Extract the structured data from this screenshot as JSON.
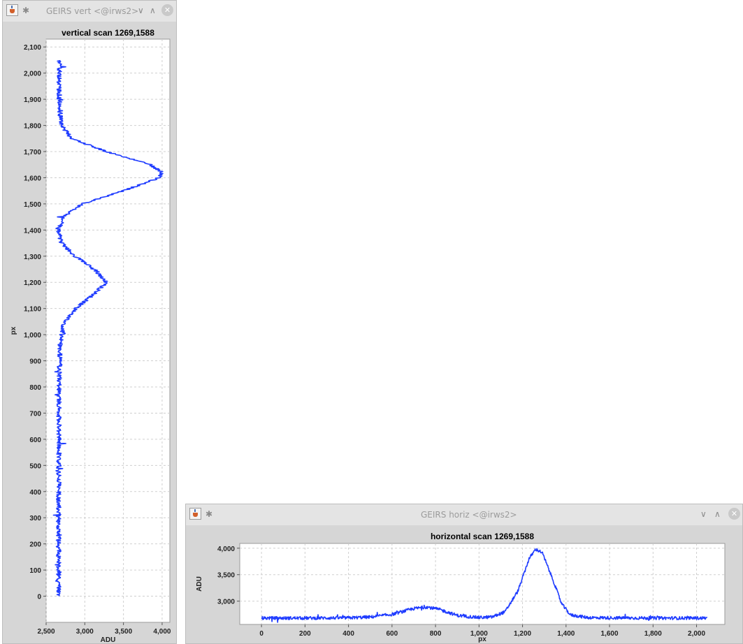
{
  "vert_window": {
    "title": "GEIRS vert <@irws2>",
    "icons": [
      "java-app-icon",
      "pin-icon",
      "chevron-down-icon",
      "chevron-up-icon",
      "close-icon"
    ],
    "chart_data": {
      "type": "line",
      "title": "vertical scan 1269,1588",
      "xlabel": "ADU",
      "ylabel": "px",
      "xlim": [
        2500,
        4100
      ],
      "ylim": [
        -100,
        2130
      ],
      "x_ticks": [
        "2,500",
        "3,000",
        "3,500",
        "4,000"
      ],
      "y_ticks": [
        "0",
        "100",
        "200",
        "300",
        "400",
        "500",
        "600",
        "700",
        "800",
        "900",
        "1,000",
        "1,100",
        "1,200",
        "1,300",
        "1,400",
        "1,500",
        "1,600",
        "1,700",
        "1,800",
        "1,900",
        "2,000",
        "2,100"
      ],
      "grid": true,
      "series": [
        {
          "color": "#1f3cff",
          "points": [
            [
              0,
              2660
            ],
            [
              100,
              2665
            ],
            [
              200,
              2660
            ],
            [
              300,
              2660
            ],
            [
              400,
              2665
            ],
            [
              500,
              2665
            ],
            [
              600,
              2665
            ],
            [
              700,
              2670
            ],
            [
              800,
              2670
            ],
            [
              900,
              2675
            ],
            [
              950,
              2680
            ],
            [
              1000,
              2700
            ],
            [
              1050,
              2740
            ],
            [
              1100,
              2880
            ],
            [
              1150,
              3100
            ],
            [
              1200,
              3280
            ],
            [
              1250,
              3130
            ],
            [
              1300,
              2870
            ],
            [
              1350,
              2700
            ],
            [
              1400,
              2660
            ],
            [
              1450,
              2720
            ],
            [
              1500,
              2970
            ],
            [
              1550,
              3500
            ],
            [
              1600,
              3960
            ],
            [
              1620,
              4000
            ],
            [
              1650,
              3850
            ],
            [
              1700,
              3280
            ],
            [
              1750,
              2830
            ],
            [
              1800,
              2700
            ],
            [
              1850,
              2680
            ],
            [
              1900,
              2670
            ],
            [
              2000,
              2670
            ],
            [
              2048,
              2670
            ]
          ]
        }
      ]
    }
  },
  "horiz_window": {
    "title": "GEIRS horiz <@irws2>",
    "icons": [
      "java-app-icon",
      "pin-icon",
      "chevron-down-icon",
      "chevron-up-icon",
      "close-icon"
    ],
    "chart_data": {
      "type": "line",
      "title": "horizontal scan 1269,1588",
      "xlabel": "px",
      "ylabel": "ADU",
      "xlim": [
        -100,
        2130
      ],
      "ylim": [
        2560,
        4090
      ],
      "x_ticks": [
        "0",
        "200",
        "400",
        "600",
        "800",
        "1,000",
        "1,200",
        "1,400",
        "1,600",
        "1,800",
        "2,000"
      ],
      "y_ticks": [
        "3,000",
        "3,500",
        "4,000"
      ],
      "grid": true,
      "series": [
        {
          "color": "#1f3cff",
          "points": [
            [
              0,
              2680
            ],
            [
              200,
              2680
            ],
            [
              400,
              2685
            ],
            [
              500,
              2700
            ],
            [
              600,
              2750
            ],
            [
              700,
              2860
            ],
            [
              760,
              2890
            ],
            [
              820,
              2840
            ],
            [
              900,
              2730
            ],
            [
              1000,
              2690
            ],
            [
              1060,
              2700
            ],
            [
              1120,
              2800
            ],
            [
              1180,
              3200
            ],
            [
              1230,
              3800
            ],
            [
              1260,
              3980
            ],
            [
              1290,
              3920
            ],
            [
              1340,
              3400
            ],
            [
              1380,
              2950
            ],
            [
              1420,
              2740
            ],
            [
              1500,
              2690
            ],
            [
              1600,
              2685
            ],
            [
              1800,
              2680
            ],
            [
              2000,
              2680
            ],
            [
              2048,
              2680
            ]
          ]
        }
      ]
    }
  }
}
